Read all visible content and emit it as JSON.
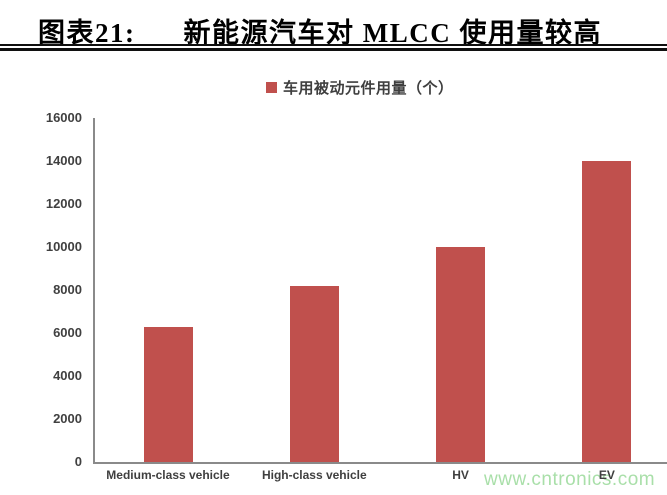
{
  "title": {
    "prefix": "图表21:",
    "text": "新能源汽车对 MLCC 使用量较高"
  },
  "watermark": {
    "text": "www.cntronics.com",
    "color": "#a9dfa9"
  },
  "chart_data": {
    "type": "bar",
    "title": "图表21: 新能源汽车对 MLCC 使用量较高",
    "legend": "车用被动元件用量（个）",
    "legend_position": "top-center",
    "categories": [
      "Medium-class vehicle",
      "High-class vehicle",
      "HV",
      "EV"
    ],
    "values": [
      6300,
      8200,
      10000,
      14000
    ],
    "xlabel": "",
    "ylabel": "",
    "ylim": [
      0,
      16000
    ],
    "ytick_step": 2000,
    "grid": false,
    "bar_color": "#c0504d"
  },
  "colors": {
    "axis": "#8a8a8a",
    "tick_label": "#404040",
    "category_label": "#3f3f3f",
    "title": "#000000"
  }
}
